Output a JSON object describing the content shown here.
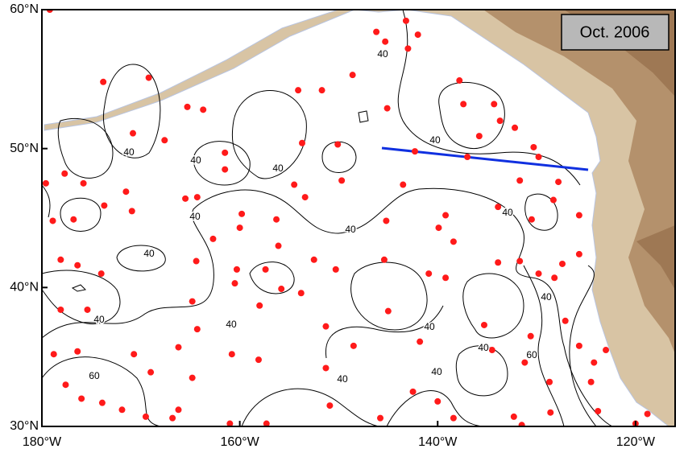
{
  "map": {
    "title": "Oct. 2006",
    "lonlim": [
      -180,
      -116
    ],
    "latlim": [
      30,
      60
    ],
    "lon_ticks": [
      {
        "value": -180,
        "label": "180°W"
      },
      {
        "value": -160,
        "label": "160°W"
      },
      {
        "value": -140,
        "label": "140°W"
      },
      {
        "value": -120,
        "label": "120°W"
      }
    ],
    "lat_ticks": [
      {
        "value": 60,
        "label": "60°N"
      },
      {
        "value": 50,
        "label": "50°N"
      },
      {
        "value": 40,
        "label": "40°N"
      },
      {
        "value": 30,
        "label": "30°N"
      }
    ],
    "contour_labels": [
      40,
      40,
      40,
      40,
      40,
      40,
      40,
      40,
      40,
      40,
      40,
      40,
      40,
      40,
      40,
      40,
      60,
      60
    ],
    "floats": {
      "lon": [
        -179.2,
        -173.8,
        -169.2,
        -170.8,
        -167.6,
        -165.3,
        -163.7,
        -161.5,
        -161.5,
        -164.3,
        -165.5,
        -159.8,
        -160,
        -162.7,
        -177.7,
        -175.8,
        -179.6,
        -178.9,
        -176.8,
        -173.7,
        -171.5,
        -170.9,
        -178.1,
        -176.4,
        -174,
        -178.1,
        -175.4,
        -176.4,
        -178.8,
        -177.6,
        -176,
        -173.9,
        -171.9,
        -170.7,
        -169,
        -169.5,
        -166.8,
        -166.2,
        -166.2,
        -164.8,
        -164.3,
        -164.8,
        -164.4,
        -160.3,
        -160.5,
        -160.8,
        -158,
        -158.1,
        -157.3,
        -161,
        -157.4,
        -155.8,
        -153.8,
        -152.5,
        -151.3,
        -151.3,
        -150.9,
        -148.5,
        -150.3,
        -156.3,
        -156.1,
        -154.5,
        -153.4,
        -153.7,
        -154.1,
        -151.7,
        -148.6,
        -150.1,
        -149.7,
        -146.2,
        -145.3,
        -143.2,
        -142,
        -143,
        -145.1,
        -145.2,
        -143.5,
        -142.3,
        -145.4,
        -145,
        -142.5,
        -145.8,
        -138.4,
        -140,
        -141.8,
        -140.9,
        -139.2,
        -139.9,
        -139.2,
        -138.4,
        -137.8,
        -137.4,
        -137,
        -135.8,
        -134.3,
        -133.7,
        -132.2,
        -130.3,
        -133.9,
        -131.7,
        -129.8,
        -128.3,
        -127.8,
        -125.7,
        -130.5,
        -131.7,
        -133.9,
        -129.8,
        -128.2,
        -127.4,
        -125.7,
        -135.3,
        -134.5,
        -130.6,
        -131.2,
        -127.1,
        -128.7,
        -132.3,
        -131.5,
        -128.6,
        -125.7,
        -124.2,
        -124.5,
        -123.8,
        -120,
        -118.8,
        -123
      ],
      "lat": [
        60,
        54.8,
        55.1,
        51.1,
        50.6,
        53,
        52.8,
        49.7,
        48.5,
        46.5,
        46.4,
        45.3,
        44.3,
        43.5,
        48.2,
        47.5,
        47.5,
        44.8,
        44.9,
        45.9,
        46.9,
        45.5,
        42,
        41.6,
        41,
        38.4,
        38.4,
        35.4,
        35.2,
        33,
        32,
        31.7,
        31.2,
        35.2,
        33.9,
        30.7,
        30.6,
        31.2,
        35.7,
        33.5,
        37,
        39,
        41.9,
        41.3,
        40.3,
        35.2,
        38.7,
        34.8,
        30.2,
        30.2,
        41.3,
        39.9,
        39.6,
        42,
        37.2,
        34.2,
        31.5,
        35.8,
        41.3,
        44.9,
        43,
        47.4,
        46.5,
        50.4,
        54.2,
        54.2,
        55.3,
        50.3,
        47.7,
        58.4,
        57.7,
        59.2,
        58.2,
        57.2,
        52.9,
        44.8,
        47.4,
        49.8,
        42,
        38.3,
        32.5,
        30.6,
        30.6,
        31.8,
        36.1,
        41,
        40.7,
        44.3,
        45.2,
        43.3,
        54.9,
        53.2,
        49.4,
        50.9,
        53.2,
        52,
        51.5,
        50.1,
        45.8,
        47.7,
        49.4,
        46.3,
        47.6,
        45.2,
        44.9,
        41.9,
        41.8,
        41,
        40.7,
        41.7,
        42.4,
        37.3,
        35.5,
        36.5,
        34.6,
        37.6,
        33.2,
        30.7,
        30.1,
        31,
        35.8,
        34.6,
        33.2,
        31.1,
        30.2,
        30.9,
        35.5
      ]
    }
  }
}
